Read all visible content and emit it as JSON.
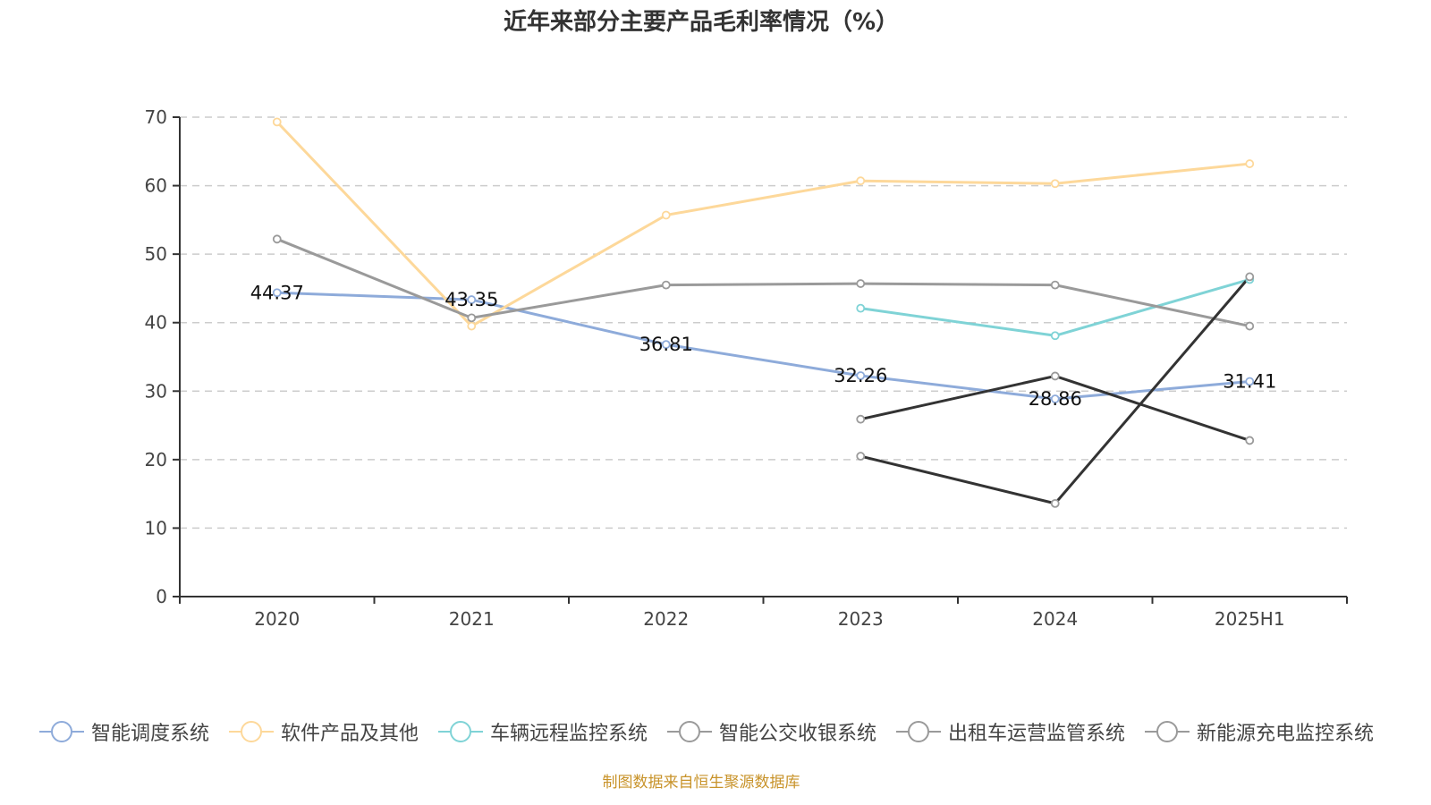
{
  "chart_data": {
    "type": "line",
    "title": "近年来部分主要产品毛利率情况（%）",
    "xlabel": "",
    "ylabel": "",
    "categories": [
      "2020",
      "2021",
      "2022",
      "2023",
      "2024",
      "2025H1"
    ],
    "ylim": [
      0,
      70
    ],
    "yticks": [
      "0",
      "10",
      "20",
      "30",
      "40",
      "50",
      "60",
      "70"
    ],
    "grid": true,
    "legend_position": "bottom",
    "series": [
      {
        "name": "智能调度系统",
        "color": "#8eabda",
        "values": [
          44.37,
          43.35,
          36.81,
          32.26,
          28.86,
          31.41
        ],
        "labels": [
          "44.37",
          "43.35",
          "36.81",
          "32.26",
          "28.86",
          "31.41"
        ]
      },
      {
        "name": "软件产品及其他",
        "color": "#fdd89a",
        "values": [
          69.3,
          39.5,
          55.7,
          60.7,
          60.3,
          63.2
        ],
        "labels": []
      },
      {
        "name": "车辆远程监控系统",
        "color": "#7fd3d6",
        "values": [
          null,
          null,
          null,
          42.1,
          38.1,
          46.3
        ],
        "labels": []
      },
      {
        "name": "智能公交收银系统",
        "color": "#9a9a9a",
        "values": [
          52.2,
          40.7,
          45.5,
          45.7,
          45.5,
          39.5
        ],
        "labels": []
      },
      {
        "name": "出租车运营监管系统",
        "color": "#333333",
        "values": [
          null,
          null,
          null,
          25.9,
          32.2,
          22.8
        ],
        "labels": []
      },
      {
        "name": "新能源充电监控系统",
        "color": "#333333",
        "values": [
          null,
          null,
          null,
          20.5,
          13.6,
          46.7
        ],
        "labels": []
      }
    ],
    "source": "制图数据来自恒生聚源数据库"
  },
  "legend_marker_colors": [
    "#8eabda",
    "#fdd89a",
    "#7fd3d6",
    "#9a9a9a",
    "#9a9a9a",
    "#9a9a9a"
  ]
}
